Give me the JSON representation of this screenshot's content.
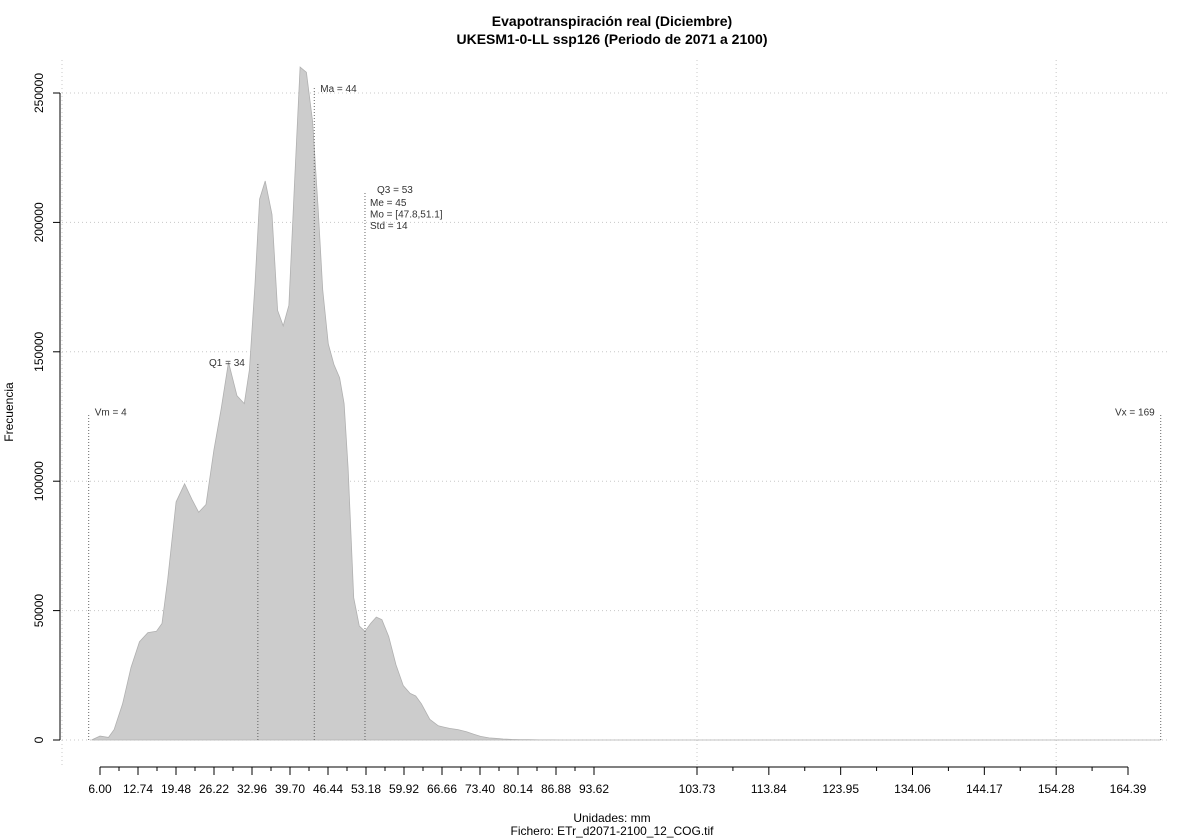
{
  "chart_data": {
    "type": "area",
    "title": "Evapotranspiración real (Diciembre)",
    "subtitle": "UKESM1-0-LL ssp126 (Periodo de 2071 a 2100)",
    "xlabel": "Unidades: mm",
    "ylabel": "Frecuencia",
    "caption": "Fichero: ETr_d2071-2100_12_COG.tif",
    "xlim": [
      3,
      170
    ],
    "ylim": [
      0,
      260000
    ],
    "grid": true,
    "fill_color": "#cccccc",
    "y_ticks": [
      0,
      50000,
      100000,
      150000,
      200000,
      250000
    ],
    "y_tick_labels": [
      "0",
      "50000",
      "100000",
      "150000",
      "200000",
      "250000"
    ],
    "x_ticks_small": [
      6.0,
      12.74,
      19.48,
      26.22,
      32.96,
      39.7,
      46.44,
      53.18,
      59.92,
      66.66,
      73.4,
      80.14,
      86.88,
      93.62
    ],
    "x_ticks_large": [
      103.73,
      113.84,
      123.95,
      134.06,
      144.17,
      154.28,
      164.39
    ],
    "x_tick_labels": [
      "6.00",
      "12.74",
      "19.48",
      "26.22",
      "32.96",
      "39.70",
      "46.44",
      "53.18",
      "59.92",
      "66.66",
      "73.40",
      "80.14",
      "86.88",
      "93.62",
      "103.73",
      "113.84",
      "123.95",
      "134.06",
      "144.17",
      "154.28",
      "164.39"
    ],
    "x_grid": [
      103.73,
      154.28
    ],
    "series": [
      {
        "x": [
          4.5,
          6.0,
          7.5,
          8.5,
          10.0,
          11.5,
          13.0,
          14.5,
          16.0,
          17.0,
          18.0,
          19.5,
          21.0,
          22.3,
          23.5,
          24.8,
          26.2,
          27.5,
          28.8,
          30.3,
          31.6,
          32.5,
          33.5,
          34.3,
          35.3,
          36.5,
          37.5,
          38.5,
          39.5,
          40.5,
          41.5,
          42.6,
          43.7,
          44.7,
          45.5,
          46.5,
          47.5,
          48.5,
          49.3,
          50.0,
          51.0,
          52.0,
          53.0,
          54.0,
          55.0,
          56.0,
          57.2,
          58.5,
          59.8,
          61.0,
          62.0,
          63.0,
          64.5,
          66.0,
          67.0,
          68.0,
          69.5,
          71.0,
          72.3,
          73.5,
          75.0,
          76.3,
          77.5,
          79.0,
          80.5,
          82.0,
          84.0,
          86.0,
          88.0,
          90.0,
          92.0,
          95.0,
          98.0,
          101.0,
          104.0,
          108.0,
          115.0,
          130.0,
          150.0,
          169.0
        ],
        "y": [
          0,
          1500,
          1000,
          4000,
          14000,
          28000,
          38000,
          41500,
          42000,
          45000,
          62000,
          92000,
          99000,
          93000,
          88000,
          91000,
          112000,
          128000,
          146000,
          133000,
          130000,
          143000,
          176000,
          209000,
          216000,
          203000,
          166000,
          160000,
          168000,
          215000,
          260000,
          258000,
          239000,
          205000,
          174000,
          153000,
          145000,
          140000,
          130000,
          105000,
          55000,
          44000,
          42000,
          45000,
          47500,
          46500,
          40000,
          29000,
          21000,
          18000,
          17000,
          14000,
          8000,
          5500,
          5000,
          4500,
          4000,
          3200,
          2200,
          1400,
          800,
          600,
          400,
          250,
          150,
          100,
          50,
          20,
          0,
          0,
          0,
          0,
          0,
          0,
          0,
          0,
          0,
          0,
          0,
          0
        ]
      }
    ],
    "vlines": [
      {
        "x": 4,
        "label": "Vm = 4",
        "label_y": 127000,
        "label_side": "right",
        "top": 126000
      },
      {
        "x": 34,
        "label": "Q1 = 34",
        "label_y": 146000,
        "label_side": "left",
        "top": 146000
      },
      {
        "x": 44,
        "label": "Ma = 44",
        "label_y": 252000,
        "label_side": "right",
        "top": 252000
      },
      {
        "x": 53,
        "label": "Q3 = 53",
        "label_y": 213000,
        "label_side": "right",
        "top": 212000
      },
      {
        "x": 169,
        "label": "Vx = 169",
        "label_y": 127000,
        "label_side": "left",
        "top": 126000
      }
    ],
    "stats_block": [
      "Me = 45",
      "Mo = [47.8,51.1]",
      "Std = 14"
    ]
  }
}
